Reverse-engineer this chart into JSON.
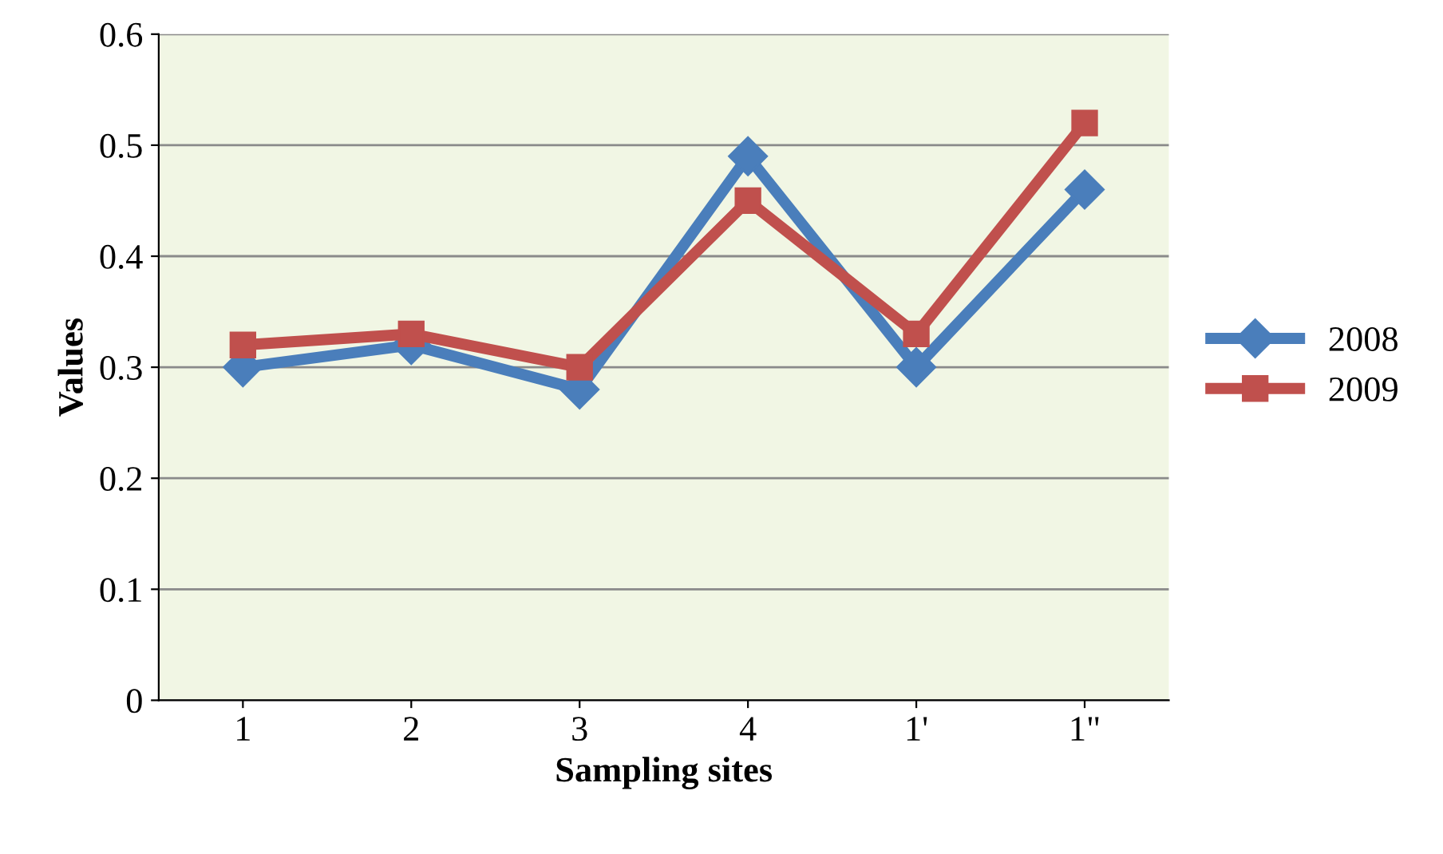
{
  "chart_data": {
    "type": "line",
    "xlabel": "Sampling sites",
    "ylabel": "Values",
    "categories": [
      "1",
      "2",
      "3",
      "4",
      "1'",
      "1\""
    ],
    "series": [
      {
        "name": "2008",
        "color": "#4a7ebb",
        "marker": "diamond",
        "values": [
          0.3,
          0.32,
          0.28,
          0.49,
          0.3,
          0.46
        ]
      },
      {
        "name": "2009",
        "color": "#c0504d",
        "marker": "square",
        "values": [
          0.32,
          0.33,
          0.3,
          0.45,
          0.33,
          0.52
        ]
      }
    ],
    "ylim": [
      0,
      0.6
    ],
    "yticks": [
      0,
      0.1,
      0.2,
      0.3,
      0.4,
      0.5,
      0.6
    ],
    "grid": "y",
    "legend": "right",
    "line_style": "solid"
  }
}
